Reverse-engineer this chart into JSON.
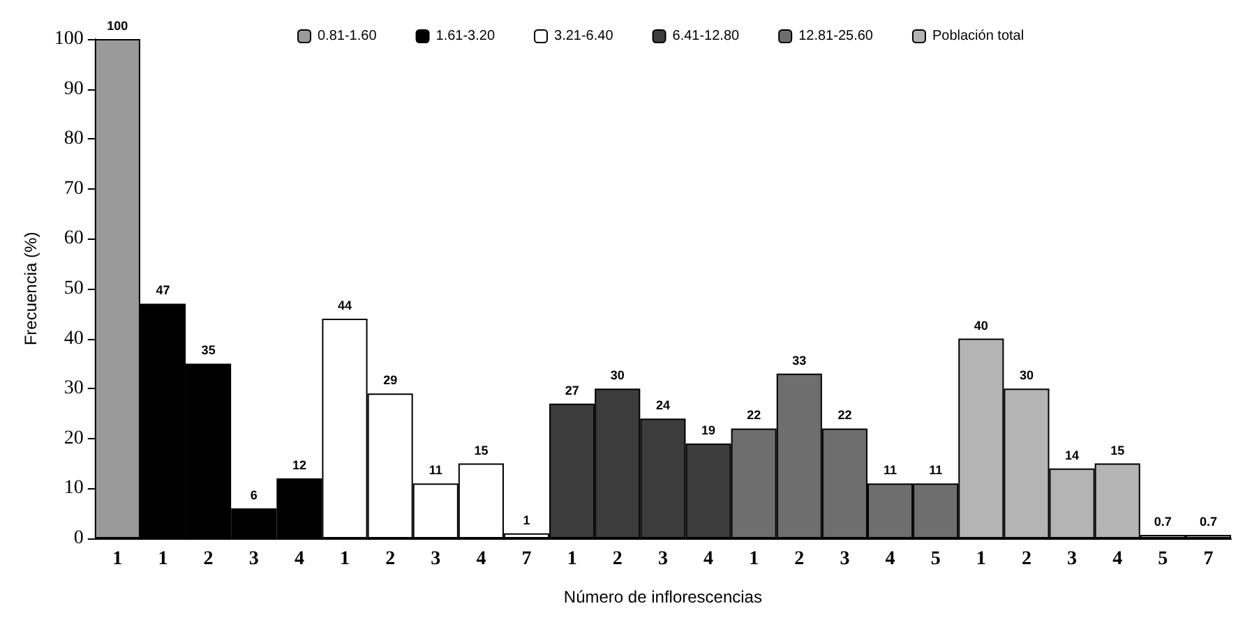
{
  "chart_data": {
    "type": "bar",
    "xlabel": "Número de inflorescencias",
    "ylabel": "Frecuencia (%)",
    "categories": [
      "1",
      "1",
      "2",
      "3",
      "4",
      "1",
      "2",
      "3",
      "4",
      "7",
      "1",
      "2",
      "3",
      "4",
      "1",
      "2",
      "3",
      "4",
      "5",
      "1",
      "2",
      "3",
      "4",
      "5",
      "7"
    ],
    "series": [
      {
        "name": "0.81-1.60",
        "color": "#9a9a9a",
        "values": [
          100,
          null,
          null,
          null,
          null,
          null,
          null,
          null,
          null,
          null,
          null,
          null,
          null,
          null,
          null,
          null,
          null,
          null,
          null,
          null,
          null,
          null,
          null,
          null,
          null
        ]
      },
      {
        "name": "1.61-3.20",
        "color": "#000000",
        "values": [
          null,
          47,
          35,
          6,
          12,
          null,
          null,
          null,
          null,
          null,
          null,
          null,
          null,
          null,
          null,
          null,
          null,
          null,
          null,
          null,
          null,
          null,
          null,
          null,
          null
        ]
      },
      {
        "name": "3.21-6.40",
        "color": "#ffffff",
        "values": [
          null,
          null,
          null,
          null,
          null,
          44,
          29,
          11,
          15,
          1,
          null,
          null,
          null,
          null,
          null,
          null,
          null,
          null,
          null,
          null,
          null,
          null,
          null,
          null,
          null
        ]
      },
      {
        "name": "6.41-12.80",
        "color": "#3c3c3c",
        "values": [
          null,
          null,
          null,
          null,
          null,
          null,
          null,
          null,
          null,
          null,
          27,
          30,
          24,
          19,
          null,
          null,
          null,
          null,
          null,
          null,
          null,
          null,
          null,
          null,
          null
        ]
      },
      {
        "name": "12.81-25.60",
        "color": "#6e6e6e",
        "values": [
          null,
          null,
          null,
          null,
          null,
          null,
          null,
          null,
          null,
          null,
          null,
          null,
          null,
          null,
          22,
          33,
          22,
          11,
          11,
          null,
          null,
          null,
          null,
          null,
          null
        ]
      },
      {
        "name": "Población total",
        "color": "#b4b4b4",
        "values": [
          null,
          null,
          null,
          null,
          null,
          null,
          null,
          null,
          null,
          null,
          null,
          null,
          null,
          null,
          null,
          null,
          null,
          null,
          null,
          40,
          30,
          14,
          15,
          0.7,
          0.7
        ]
      }
    ],
    "ylim": [
      0,
      100
    ],
    "yticks": [
      0,
      10,
      20,
      30,
      40,
      50,
      60,
      70,
      80,
      90,
      100
    ],
    "data_labels": true,
    "legend": "top"
  }
}
